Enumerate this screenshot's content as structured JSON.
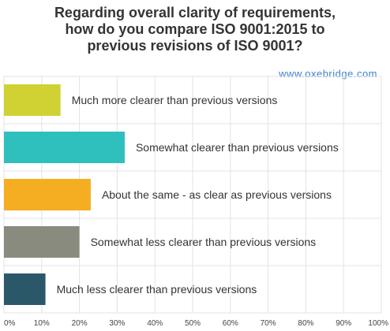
{
  "title_lines": [
    "Regarding overall clarity of requirements,",
    "how do you compare ISO 9001:2015 to",
    "previous revisions of ISO 9001?"
  ],
  "watermark": "www.oxebridge.com",
  "chart_data": {
    "type": "bar",
    "orientation": "horizontal",
    "title": "Regarding overall clarity of requirements, how do you compare ISO 9001:2015 to previous revisions of ISO 9001?",
    "categories": [
      "Much more clearer than previous versions",
      "Somewhat clearer than previous versions",
      "About the same - as clear as previous versions",
      "Somewhat less clearer than previous versions",
      "Much less clearer than previous versions"
    ],
    "values": [
      15,
      32,
      23,
      20,
      11
    ],
    "colors": [
      "#cfd232",
      "#2fbfbd",
      "#f5ad22",
      "#898b7e",
      "#2b5868"
    ],
    "xlim": [
      0,
      100
    ],
    "xticks": [
      "0%",
      "10%",
      "20%",
      "30%",
      "40%",
      "50%",
      "60%",
      "70%",
      "80%",
      "90%",
      "100%"
    ],
    "grid": true,
    "xlabel": "",
    "ylabel": ""
  }
}
